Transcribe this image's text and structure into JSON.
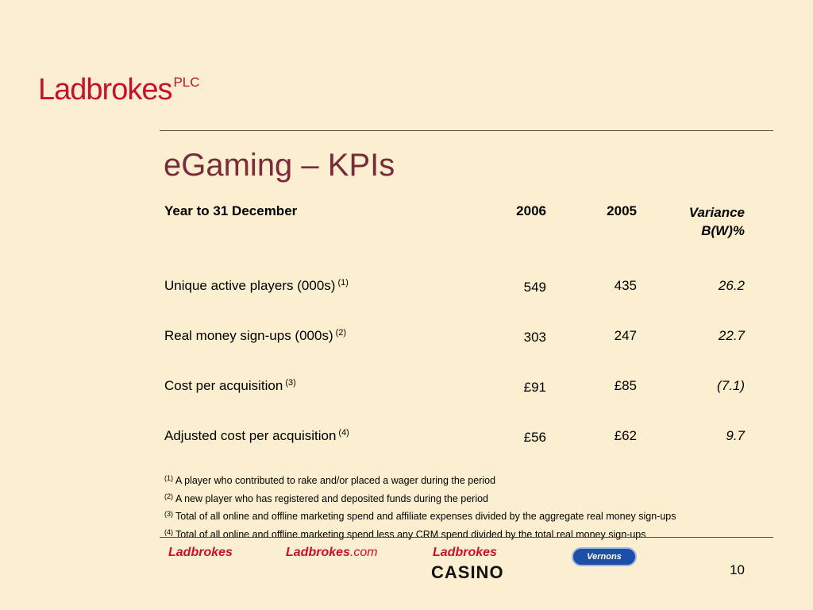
{
  "logo": {
    "brand": "Ladbrokes",
    "suffix": "PLC"
  },
  "title": "eGaming – KPIs",
  "table": {
    "header": {
      "label": "Year to 31 December",
      "col2006": "2006",
      "col2005": "2005",
      "variance_line1": "Variance",
      "variance_line2": "B(W)%"
    },
    "rows": [
      {
        "label": "Unique active players (000s)",
        "note": "(1)",
        "v2006": "549",
        "v2005": "435",
        "variance": "26.2"
      },
      {
        "label": "Real money sign-ups (000s)",
        "note": "(2)",
        "v2006": "303",
        "v2005": "247",
        "variance": "22.7"
      },
      {
        "label": "Cost per acquisition",
        "note": "(3)",
        "v2006": "£91",
        "v2005": "£85",
        "variance": "(7.1)"
      },
      {
        "label": "Adjusted cost per acquisition",
        "note": "(4)",
        "v2006": "£56",
        "v2005": "£62",
        "variance": "9.7"
      }
    ]
  },
  "footnotes": [
    {
      "mark": "(1)",
      "text": "A player who contributed to rake and/or placed a wager during the period"
    },
    {
      "mark": "(2)",
      "text": "A new player who has registered and deposited funds during the period"
    },
    {
      "mark": "(3)",
      "text": "Total of all online and offline marketing spend and affiliate expenses divided by the aggregate real money sign-ups"
    },
    {
      "mark": "(4)",
      "text": "Total of all online and offline marketing spend less any CRM spend divided by the total real money sign-ups"
    }
  ],
  "footer": {
    "logo1": "Ladbrokes",
    "logo2_main": "Ladbrokes",
    "logo2_suffix": ".com",
    "logo3_top": "Ladbrokes",
    "logo3_bottom": "CASINO",
    "logo4": "Vernons",
    "page_number": "10"
  },
  "colors": {
    "background": "#FCEFD0",
    "brand_red": "#C8102E",
    "title": "#7A2A3A"
  }
}
